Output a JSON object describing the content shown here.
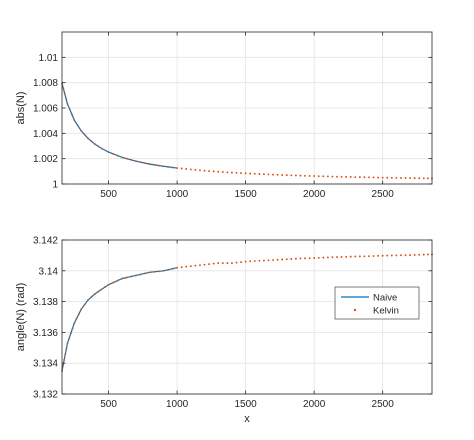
{
  "chart_data": [
    {
      "type": "line",
      "ylabel": "abs(N)",
      "xlabel": "",
      "xlim": [
        160,
        2860
      ],
      "ylim": [
        1.0,
        1.012
      ],
      "xticks": [
        500,
        1000,
        1500,
        2000,
        2500
      ],
      "xtick_labels": [
        "500",
        "1000",
        "1500",
        "2000",
        "2500"
      ],
      "yticks": [
        1.0,
        1.002,
        1.004,
        1.006,
        1.008,
        1.01
      ],
      "ytick_labels": [
        "1",
        "1.002",
        "1.004",
        "1.006",
        "1.008",
        "1.01"
      ],
      "grid": true,
      "series": [
        {
          "name": "Naive",
          "style": "line",
          "color": "#0072BD",
          "x": [
            160,
            200,
            250,
            300,
            350,
            400,
            450,
            500,
            600,
            700,
            800,
            900,
            1000
          ],
          "y": [
            1.00794,
            1.00632,
            1.00504,
            1.0042,
            1.0036,
            1.00315,
            1.0028,
            1.00252,
            1.0021,
            1.0018,
            1.00157,
            1.0014,
            1.00126
          ]
        },
        {
          "name": "Kelvin",
          "style": "dots",
          "color": "#D95319",
          "x": [
            160,
            200,
            250,
            300,
            350,
            400,
            450,
            500,
            600,
            700,
            800,
            900,
            1000,
            1100,
            1200,
            1300,
            1400,
            1500,
            1600,
            1700,
            1800,
            1900,
            2000,
            2100,
            2200,
            2300,
            2400,
            2500,
            2600,
            2700,
            2800,
            2860
          ],
          "y": [
            1.00794,
            1.00632,
            1.00504,
            1.0042,
            1.0036,
            1.00315,
            1.0028,
            1.00252,
            1.0021,
            1.0018,
            1.00157,
            1.0014,
            1.00126,
            1.00115,
            1.00105,
            1.00097,
            1.0009,
            1.00084,
            1.00079,
            1.00074,
            1.0007,
            1.00066,
            1.00063,
            1.0006,
            1.00057,
            1.00055,
            1.00053,
            1.0005,
            1.00048,
            1.00047,
            1.00045,
            1.00044
          ]
        }
      ]
    },
    {
      "type": "line",
      "ylabel": "angle(N) (rad)",
      "xlabel": "x",
      "xlim": [
        160,
        2860
      ],
      "ylim": [
        3.132,
        3.142
      ],
      "xticks": [
        500,
        1000,
        1500,
        2000,
        2500
      ],
      "xtick_labels": [
        "500",
        "1000",
        "1500",
        "2000",
        "2500"
      ],
      "yticks": [
        3.132,
        3.134,
        3.136,
        3.138,
        3.14,
        3.142
      ],
      "ytick_labels": [
        "3.132",
        "3.134",
        "3.136",
        "3.138",
        "3.14",
        "3.142"
      ],
      "grid": true,
      "legend": {
        "placement": "right",
        "entries": [
          "Naive",
          "Kelvin"
        ]
      },
      "series": [
        {
          "name": "Naive",
          "style": "line",
          "color": "#0072BD",
          "x": [
            160,
            200,
            250,
            300,
            350,
            400,
            450,
            500,
            600,
            700,
            800,
            900,
            1000
          ],
          "y": [
            3.1335,
            3.1353,
            3.1366,
            3.1375,
            3.1381,
            3.1385,
            3.1388,
            3.1391,
            3.1395,
            3.1397,
            3.1399,
            3.14,
            3.1402
          ]
        },
        {
          "name": "Kelvin",
          "style": "dots",
          "color": "#D95319",
          "x": [
            160,
            200,
            250,
            300,
            350,
            400,
            450,
            500,
            600,
            700,
            800,
            900,
            1000,
            1100,
            1200,
            1300,
            1400,
            1500,
            1600,
            1700,
            1800,
            1900,
            2000,
            2100,
            2200,
            2300,
            2400,
            2500,
            2600,
            2700,
            2800,
            2860
          ],
          "y": [
            3.1335,
            3.1353,
            3.1366,
            3.1375,
            3.1381,
            3.1385,
            3.1388,
            3.1391,
            3.1395,
            3.1397,
            3.1399,
            3.14,
            3.1402,
            3.1403,
            3.1404,
            3.1405,
            3.1405,
            3.1406,
            3.14065,
            3.1407,
            3.14075,
            3.1408,
            3.14083,
            3.14087,
            3.1409,
            3.14093,
            3.14095,
            3.14098,
            3.141,
            3.14102,
            3.14105,
            3.14107
          ]
        }
      ]
    }
  ]
}
